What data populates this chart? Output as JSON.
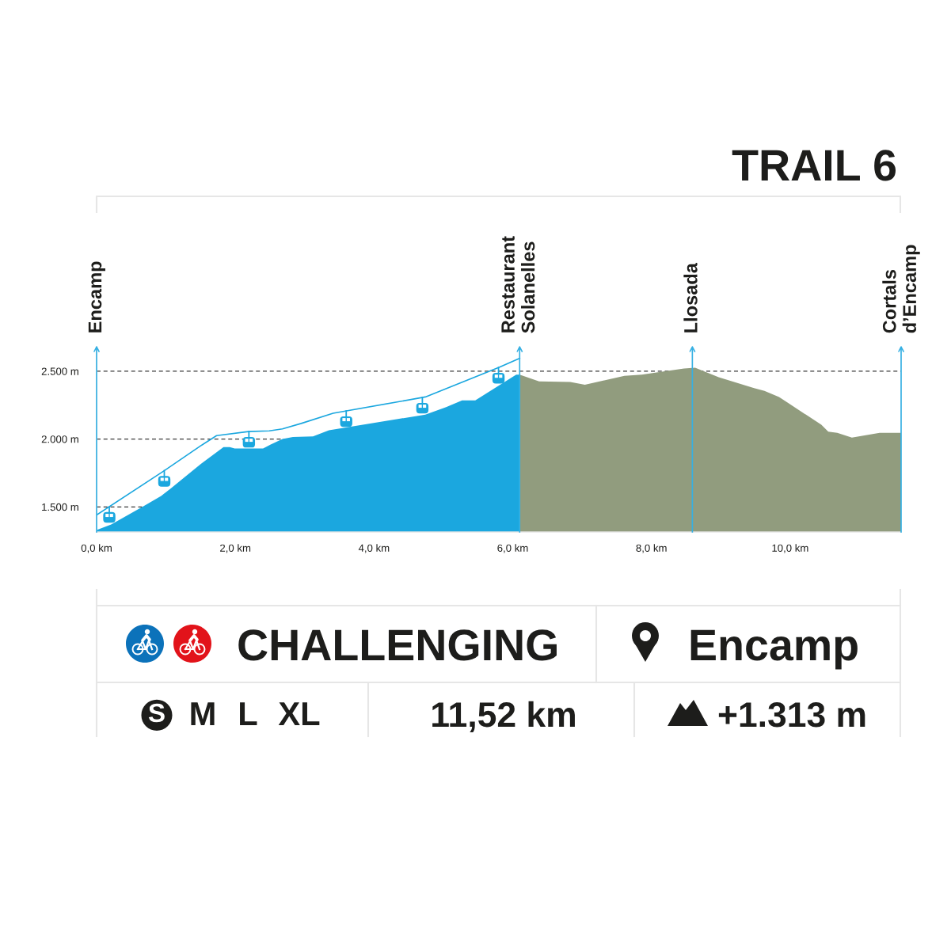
{
  "chart_data": {
    "type": "area",
    "title": "TRAIL 6",
    "series": [
      {
        "color": "#1ba7df",
        "x": [
          0,
          0.21,
          0.66,
          0.93,
          1.08,
          1.5,
          1.83,
          1.92,
          1.99,
          2.4,
          2.51,
          2.68,
          2.83,
          3.12,
          3.35,
          4.74,
          5.04,
          5.27,
          5.46,
          6.05,
          6.1
        ],
        "values": [
          1330,
          1370,
          1500,
          1580,
          1640,
          1815,
          1940,
          1940,
          1930,
          1930,
          1960,
          2000,
          2015,
          2020,
          2065,
          2180,
          2235,
          2285,
          2285,
          2475,
          2475
        ]
      },
      {
        "color": "#919c7e",
        "x": [
          6.1,
          6.38,
          6.83,
          7.04,
          7.61,
          7.86,
          8.21,
          8.47,
          8.63,
          8.97,
          9.48,
          9.63,
          9.84,
          10.45,
          10.55,
          10.68,
          10.89,
          11.29,
          11.6
        ],
        "values": [
          2475,
          2425,
          2420,
          2400,
          2465,
          2475,
          2500,
          2520,
          2525,
          2455,
          2375,
          2355,
          2310,
          2105,
          2055,
          2045,
          2010,
          2045,
          2045
        ]
      },
      {
        "type": "line",
        "color": "#1ba7df",
        "x": [
          0,
          0.97,
          1.5,
          1.73,
          2.19,
          2.49,
          2.68,
          2.95,
          3.41,
          4.74,
          5.81,
          6.1
        ],
        "values": [
          1440,
          1765,
          1950,
          2025,
          2055,
          2060,
          2075,
          2115,
          2190,
          2310,
          2530,
          2595
        ]
      }
    ],
    "xlim": [
      0,
      11.6
    ],
    "xticks": [
      {
        "value": 0,
        "label": "0,0 km"
      },
      {
        "value": 2,
        "label": "2,0 km"
      },
      {
        "value": 4,
        "label": "4,0 km"
      },
      {
        "value": 6,
        "label": "6,0 km"
      },
      {
        "value": 8,
        "label": "8,0 km"
      },
      {
        "value": 10,
        "label": "10,0 km"
      }
    ],
    "ylim": [
      1315,
      2680
    ],
    "yticks": [
      {
        "value": 1500,
        "label": "1.500 m"
      },
      {
        "value": 2000,
        "label": "2.000 m"
      },
      {
        "value": 2500,
        "label": "2.500 m"
      }
    ],
    "grid": "y",
    "ref_lines": [
      {
        "axis": "x",
        "value": 0,
        "label": "Encamp",
        "color": "#36b0e3"
      },
      {
        "axis": "x",
        "value": 6.1,
        "label": "Restaurant\nSolanelles",
        "color": "#36b0e3"
      },
      {
        "axis": "x",
        "value": 8.59,
        "label": "Llosada",
        "color": "#36b0e3"
      },
      {
        "axis": "x",
        "value": 11.6,
        "label": "Cortals\nd’Encamp",
        "color": "#36b0e3"
      }
    ],
    "annotations": [
      "CHALLENGING",
      "Encamp",
      "S",
      "M",
      "L",
      "XL",
      "11,52 km",
      "+1.313 m"
    ]
  }
}
